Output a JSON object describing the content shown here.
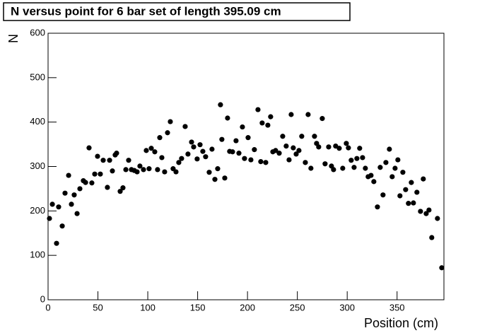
{
  "chart_data": {
    "type": "scatter",
    "title": "N versus point for 6 bar set of length 395.09 cm",
    "x_label": "Position (cm)",
    "y_label": "N",
    "color": "#000000",
    "xlim": [
      0,
      397
    ],
    "ylim": [
      0,
      600
    ],
    "xticks": [
      0,
      50,
      100,
      150,
      200,
      250,
      300,
      350
    ],
    "yticks": [
      0,
      100,
      200,
      300,
      400,
      500,
      600
    ],
    "x": [
      1.4,
      4.3,
      8.5,
      10.6,
      14.2,
      17.0,
      20.6,
      23.4,
      26.2,
      29.1,
      31.9,
      35.4,
      37.6,
      41.1,
      43.9,
      46.8,
      49.6,
      52.4,
      55.3,
      59.5,
      61.7,
      64.5,
      67.3,
      68.7,
      72.3,
      75.1,
      78.0,
      80.8,
      83.6,
      86.5,
      89.3,
      92.1,
      95.7,
      98.5,
      101.3,
      103.5,
      107.0,
      109.8,
      112.0,
      114.1,
      116.9,
      119.8,
      122.6,
      125.4,
      128.3,
      131.1,
      133.9,
      137.5,
      140.3,
      143.9,
      146.0,
      149.5,
      152.4,
      155.2,
      158.0,
      161.6,
      164.4,
      167.3,
      170.1,
      172.9,
      174.3,
      177.2,
      180.0,
      182.1,
      185.0,
      188.5,
      191.4,
      194.9,
      197.0,
      200.6,
      203.4,
      206.9,
      210.5,
      213.3,
      214.7,
      218.3,
      220.4,
      223.2,
      225.4,
      228.2,
      231.8,
      235.3,
      238.8,
      241.7,
      243.8,
      245.9,
      248.8,
      251.6,
      254.4,
      258.0,
      260.8,
      263.6,
      267.2,
      269.3,
      271.4,
      275.0,
      277.8,
      281.4,
      284.2,
      286.3,
      288.4,
      292.0,
      295.5,
      299.1,
      301.2,
      304.0,
      306.9,
      309.7,
      312.5,
      315.4,
      318.2,
      321.0,
      323.9,
      326.7,
      330.3,
      333.1,
      335.9,
      338.8,
      342.3,
      345.1,
      348.0,
      350.8,
      352.9,
      355.8,
      358.6,
      361.4,
      364.3,
      366.4,
      369.9,
      373.5,
      376.3,
      379.2,
      382.0,
      384.8,
      390.5,
      394.8
    ],
    "values": [
      183,
      215,
      127,
      209,
      166,
      240,
      280,
      215,
      236,
      194,
      250,
      268,
      264,
      342,
      263,
      283,
      323,
      283,
      314,
      253,
      314,
      290,
      326,
      330,
      244,
      252,
      293,
      314,
      293,
      291,
      288,
      301,
      293,
      336,
      295,
      341,
      333,
      293,
      365,
      320,
      288,
      376,
      401,
      295,
      288,
      309,
      318,
      390,
      328,
      355,
      344,
      317,
      349,
      334,
      322,
      287,
      339,
      271,
      295,
      439,
      361,
      274,
      409,
      334,
      333,
      358,
      330,
      389,
      318,
      365,
      315,
      338,
      428,
      311,
      398,
      309,
      393,
      412,
      333,
      336,
      330,
      368,
      346,
      315,
      417,
      342,
      328,
      336,
      368,
      309,
      417,
      296,
      368,
      352,
      344,
      408,
      306,
      344,
      301,
      293,
      346,
      341,
      296,
      352,
      342,
      314,
      298,
      318,
      341,
      320,
      296,
      277,
      280,
      266,
      209,
      298,
      236,
      309,
      339,
      277,
      296,
      315,
      234,
      287,
      248,
      217,
      264,
      218,
      242,
      199,
      272,
      194,
      202,
      140,
      183,
      72
    ]
  }
}
